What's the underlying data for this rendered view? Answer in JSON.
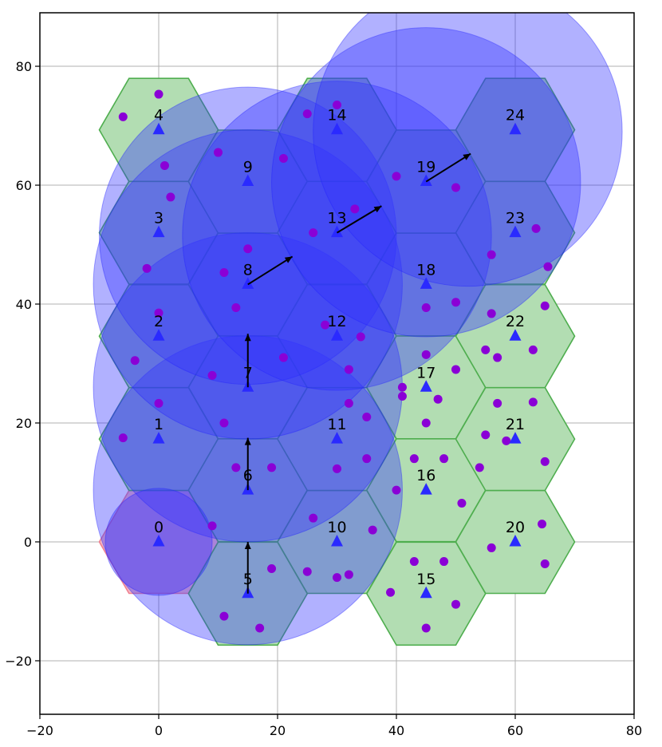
{
  "chart_data": {
    "type": "scatter",
    "title": "",
    "xlabel": "",
    "ylabel": "",
    "xlim": [
      -20,
      80
    ],
    "ylim": [
      -29,
      89
    ],
    "xticks": [
      -20,
      0,
      20,
      40,
      60,
      80
    ],
    "xtick_labels": [
      "−20",
      "0",
      "20",
      "40",
      "60",
      "80"
    ],
    "yticks": [
      -20,
      0,
      20,
      40,
      60,
      80
    ],
    "ytick_labels": [
      "−20",
      "0",
      "20",
      "40",
      "60",
      "80"
    ],
    "grid": true,
    "hex_radius": 10,
    "colors": {
      "hex_fill_green": "#b2ddb2",
      "hex_edge_green": "#4fae4f",
      "hex_fill_red": "#f4b6c2",
      "hex_edge_red": "#f08090",
      "coverage_fill": "#3333ff",
      "site_marker": "#2a2aff",
      "user_dot": "#8a00d6",
      "arrow": "#000000"
    },
    "hexagons": [
      {
        "id": 0,
        "label": "0",
        "x": 0,
        "y": 0,
        "color": "red"
      },
      {
        "id": 1,
        "label": "1",
        "x": 0,
        "y": 17.3,
        "color": "green"
      },
      {
        "id": 2,
        "label": "2",
        "x": 0,
        "y": 34.6,
        "color": "green"
      },
      {
        "id": 3,
        "label": "3",
        "x": 0,
        "y": 52,
        "color": "green"
      },
      {
        "id": 4,
        "label": "4",
        "x": 0,
        "y": 69.3,
        "color": "green"
      },
      {
        "id": 5,
        "label": "5",
        "x": 15,
        "y": -8.7,
        "color": "green"
      },
      {
        "id": 6,
        "label": "6",
        "x": 15,
        "y": 8.7,
        "color": "green"
      },
      {
        "id": 7,
        "label": "7",
        "x": 15,
        "y": 26,
        "color": "green"
      },
      {
        "id": 8,
        "label": "8",
        "x": 15,
        "y": 43.3,
        "color": "green"
      },
      {
        "id": 9,
        "label": "9",
        "x": 15,
        "y": 60.6,
        "color": "green"
      },
      {
        "id": 10,
        "label": "10",
        "x": 30,
        "y": 0,
        "color": "green"
      },
      {
        "id": 11,
        "label": "11",
        "x": 30,
        "y": 17.3,
        "color": "green"
      },
      {
        "id": 12,
        "label": "12",
        "x": 30,
        "y": 34.6,
        "color": "green"
      },
      {
        "id": 13,
        "label": "13",
        "x": 30,
        "y": 52,
        "color": "green"
      },
      {
        "id": 14,
        "label": "14",
        "x": 30,
        "y": 69.3,
        "color": "green"
      },
      {
        "id": 15,
        "label": "15",
        "x": 45,
        "y": -8.7,
        "color": "green"
      },
      {
        "id": 16,
        "label": "16",
        "x": 45,
        "y": 8.7,
        "color": "green"
      },
      {
        "id": 17,
        "label": "17",
        "x": 45,
        "y": 26,
        "color": "green"
      },
      {
        "id": 18,
        "label": "18",
        "x": 45,
        "y": 43.3,
        "color": "green"
      },
      {
        "id": 19,
        "label": "19",
        "x": 45,
        "y": 60.6,
        "color": "green"
      },
      {
        "id": 20,
        "label": "20",
        "x": 60,
        "y": 0,
        "color": "green"
      },
      {
        "id": 21,
        "label": "21",
        "x": 60,
        "y": 17.3,
        "color": "green"
      },
      {
        "id": 22,
        "label": "22",
        "x": 60,
        "y": 34.6,
        "color": "green"
      },
      {
        "id": 23,
        "label": "23",
        "x": 60,
        "y": 52,
        "color": "green"
      },
      {
        "id": 24,
        "label": "24",
        "x": 60,
        "y": 69.3,
        "color": "green"
      }
    ],
    "coverage_circles": [
      {
        "x": 15,
        "y": 8.7,
        "r": 26
      },
      {
        "x": 15,
        "y": 26,
        "r": 26
      },
      {
        "x": 15,
        "y": 43.3,
        "r": 26
      },
      {
        "x": 15,
        "y": 51.5,
        "r": 25
      },
      {
        "x": 30,
        "y": 51.5,
        "r": 26
      },
      {
        "x": 45,
        "y": 60.5,
        "r": 26
      },
      {
        "x": 52,
        "y": 69,
        "r": 26
      },
      {
        "x": 0,
        "y": 0,
        "r": 9
      }
    ],
    "arrows": [
      {
        "from": [
          15,
          -0.5
        ],
        "to": [
          15,
          0.5
        ],
        "origin": [
          15,
          -8.7
        ],
        "tip": [
          15,
          0
        ]
      },
      {
        "origin": [
          15,
          8.7
        ],
        "tip": [
          15,
          17.5
        ]
      },
      {
        "origin": [
          15,
          26
        ],
        "tip": [
          15,
          35
        ]
      },
      {
        "origin": [
          15,
          43.3
        ],
        "tip": [
          22.5,
          48
        ]
      },
      {
        "origin": [
          30,
          52
        ],
        "tip": [
          37.5,
          56.5
        ]
      },
      {
        "origin": [
          45,
          60.6
        ],
        "tip": [
          52.5,
          65.3
        ]
      }
    ],
    "user_points": [
      [
        -6,
        71.5
      ],
      [
        0,
        75.3
      ],
      [
        1,
        63.3
      ],
      [
        2,
        58
      ],
      [
        -2,
        46
      ],
      [
        0,
        38.5
      ],
      [
        -4,
        30.5
      ],
      [
        0,
        23.3
      ],
      [
        -6,
        17.5
      ],
      [
        9,
        2.7
      ],
      [
        10,
        65.5
      ],
      [
        21,
        64.5
      ],
      [
        25,
        72
      ],
      [
        30,
        73.5
      ],
      [
        26,
        52
      ],
      [
        33,
        56
      ],
      [
        15,
        49.3
      ],
      [
        11,
        45.3
      ],
      [
        13,
        39.4
      ],
      [
        28,
        36.5
      ],
      [
        34,
        34.5
      ],
      [
        21,
        31
      ],
      [
        9,
        28
      ],
      [
        32,
        29
      ],
      [
        32,
        23.3
      ],
      [
        35,
        21
      ],
      [
        41,
        26
      ],
      [
        41,
        24.5
      ],
      [
        45,
        31.5
      ],
      [
        47,
        24
      ],
      [
        45,
        20
      ],
      [
        50,
        29
      ],
      [
        11,
        20
      ],
      [
        13,
        12.5
      ],
      [
        19,
        12.5
      ],
      [
        30,
        12.3
      ],
      [
        35,
        14
      ],
      [
        40,
        8.7
      ],
      [
        36,
        2
      ],
      [
        26,
        4
      ],
      [
        43,
        14
      ],
      [
        48,
        14
      ],
      [
        51,
        6.5
      ],
      [
        54,
        12.5
      ],
      [
        55,
        18
      ],
      [
        57,
        23.3
      ],
      [
        58.5,
        17
      ],
      [
        63,
        23.5
      ],
      [
        65,
        13.5
      ],
      [
        55,
        32.3
      ],
      [
        57,
        31
      ],
      [
        63,
        32.3
      ],
      [
        65,
        39.7
      ],
      [
        56,
        38.4
      ],
      [
        50,
        40.3
      ],
      [
        45,
        39.4
      ],
      [
        56,
        48.3
      ],
      [
        63.5,
        52.7
      ],
      [
        65.5,
        46.3
      ],
      [
        50,
        59.6
      ],
      [
        40,
        61.5
      ],
      [
        19,
        -4.5
      ],
      [
        25,
        -5
      ],
      [
        30,
        -6
      ],
      [
        32,
        -5.5
      ],
      [
        11,
        -12.5
      ],
      [
        17,
        -14.5
      ],
      [
        39,
        -8.5
      ],
      [
        43,
        -3.3
      ],
      [
        48,
        -3.3
      ],
      [
        50,
        -10.5
      ],
      [
        45,
        -14.5
      ],
      [
        56,
        -1
      ],
      [
        64.5,
        3
      ],
      [
        65,
        -3.7
      ]
    ]
  }
}
